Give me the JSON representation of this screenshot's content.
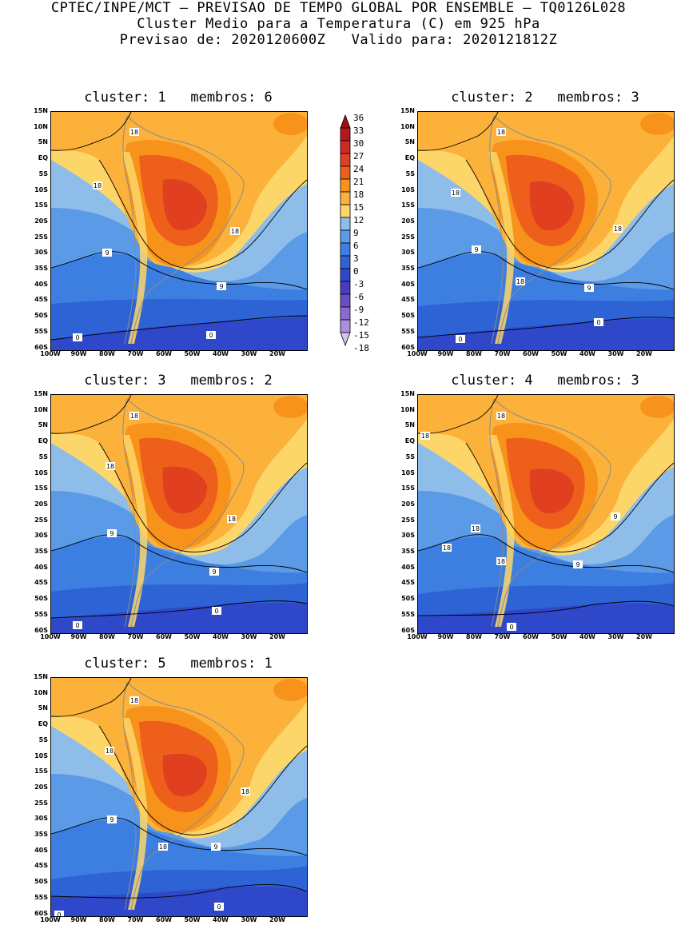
{
  "header": {
    "line1": "CPTEC/INPE/MCT – PREVISAO DE TEMPO GLOBAL POR ENSEMBLE – TQ0126L028",
    "line2": "Cluster Medio para a Temperatura (C) em 925 hPa",
    "line3": "Previsao de: 2020120600Z   Valido para: 2020121812Z"
  },
  "lat_labels": [
    "15N",
    "10N",
    "5N",
    "EQ",
    "5S",
    "10S",
    "15S",
    "20S",
    "25S",
    "30S",
    "35S",
    "40S",
    "45S",
    "50S",
    "55S",
    "60S"
  ],
  "lon_labels": [
    "100W",
    "90W",
    "80W",
    "70W",
    "60W",
    "50W",
    "40W",
    "30W",
    "20W"
  ],
  "colorbar": {
    "levels": [
      "36",
      "33",
      "30",
      "27",
      "24",
      "21",
      "18",
      "15",
      "12",
      "9",
      "6",
      "3",
      "0",
      "-3",
      "-6",
      "-9",
      "-12",
      "-15",
      "-18"
    ],
    "colors": [
      "#9b0f1a",
      "#b8161f",
      "#cf2a22",
      "#e0401f",
      "#ef5f1c",
      "#f7931b",
      "#fbb13a",
      "#fdd669",
      "#8fbde9",
      "#5a9ae6",
      "#3d7fe0",
      "#2e63d6",
      "#2e48c9",
      "#4a3bc1",
      "#6a4cc9",
      "#8a6ad3",
      "#ac8ede",
      "#d3c3ee"
    ]
  },
  "panels": [
    {
      "title": "cluster: 1   membros: 6",
      "labels": [
        "18",
        "18",
        "18",
        "9",
        "9",
        "0",
        "0"
      ]
    },
    {
      "title": "cluster: 2   membros: 3",
      "labels": [
        "18",
        "18",
        "18",
        "9",
        "18",
        "9",
        "0",
        "0"
      ]
    },
    {
      "title": "cluster: 3   membros: 2",
      "labels": [
        "18",
        "18",
        "18",
        "9",
        "9",
        "0",
        "0"
      ]
    },
    {
      "title": "cluster: 4   membros: 3",
      "labels": [
        "18",
        "18",
        "18",
        "18",
        "9",
        "18",
        "9",
        "0"
      ]
    },
    {
      "title": "cluster: 5   membros: 1",
      "labels": [
        "18",
        "18",
        "18",
        "9",
        "18",
        "9",
        "0",
        "0"
      ]
    }
  ]
}
